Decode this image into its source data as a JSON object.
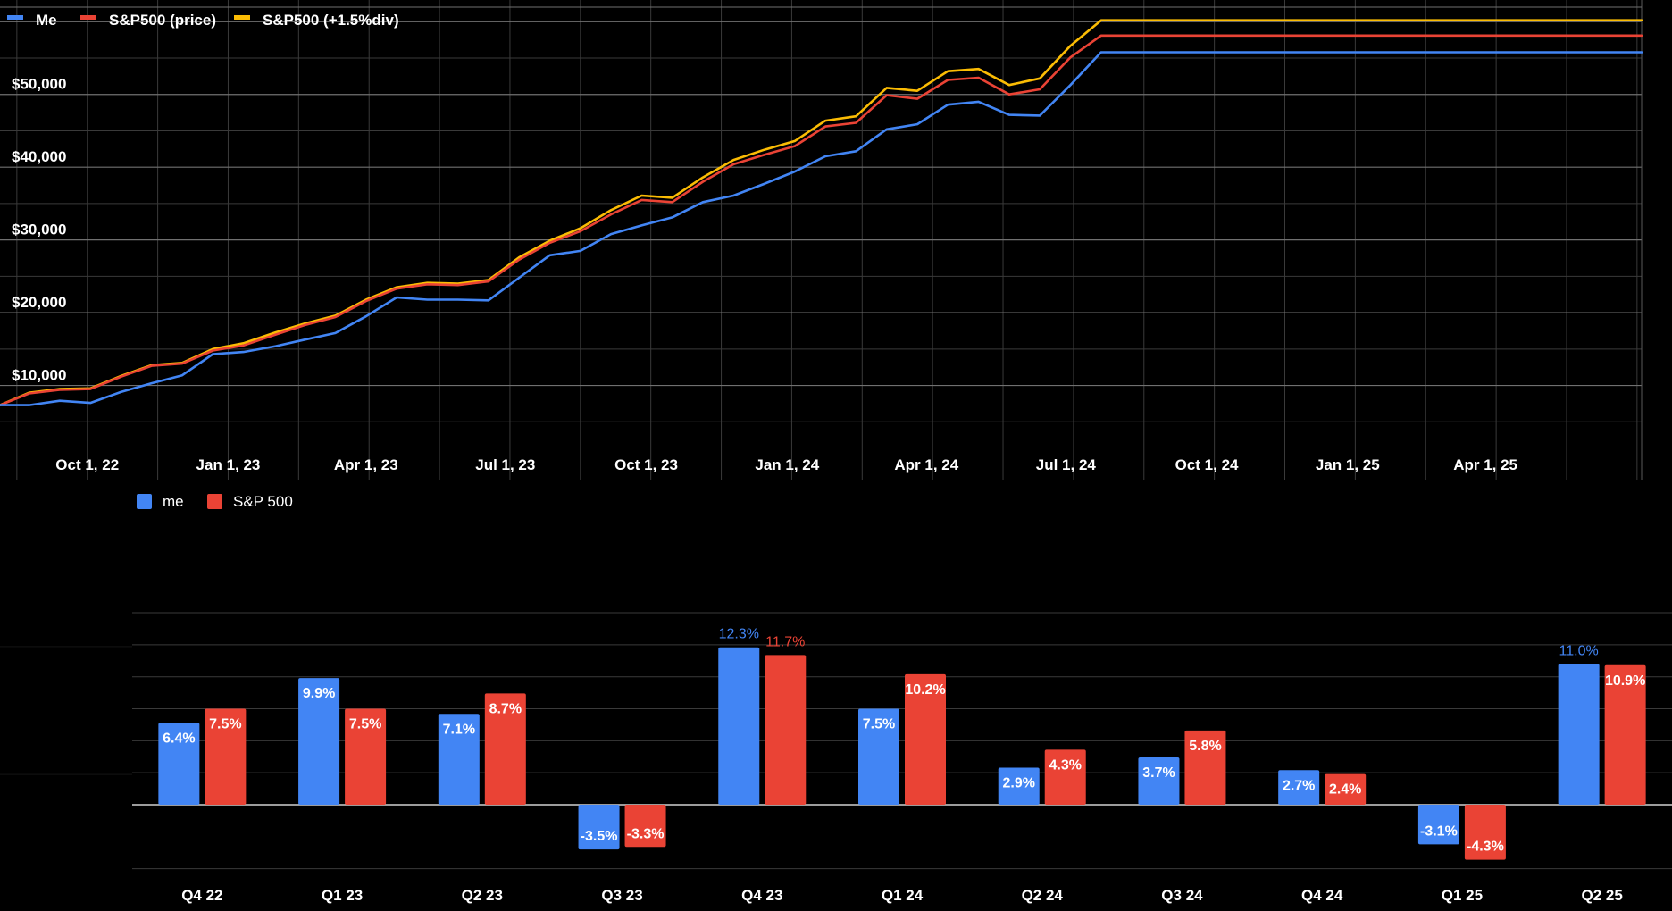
{
  "chart_data": [
    {
      "type": "line",
      "title": "",
      "xlabel": "",
      "ylabel": "",
      "legend_position": "top-left",
      "grid": true,
      "x_tick_labels": [
        "Oct 1, 22",
        "Jan 1, 23",
        "Apr 1, 23",
        "Jul 1, 23",
        "Oct 1, 23",
        "Jan 1, 24",
        "Apr 1, 24",
        "Jul 1, 24",
        "Oct 1, 24",
        "Jan 1, 25",
        "Apr 1, 25"
      ],
      "x_ticks": [
        "2022-10-01",
        "2023-01-01",
        "2023-04-01",
        "2023-07-01",
        "2023-10-01",
        "2024-01-01",
        "2024-04-01",
        "2024-07-01",
        "2024-10-01",
        "2025-01-01",
        "2025-04-01"
      ],
      "y_tick_labels": [
        "$10,000",
        "$20,000",
        "$30,000",
        "$40,000",
        "$50,000"
      ],
      "y_ticks": [
        10000,
        20000,
        30000,
        40000,
        50000
      ],
      "xlim": [
        "2022-08-05",
        "2025-07-12"
      ],
      "ylim": [
        4300,
        62000
      ],
      "x": [
        "2022-08-05",
        "2022-08-24",
        "2022-09-13",
        "2022-10-03",
        "2022-10-23",
        "2022-11-12",
        "2022-12-02",
        "2022-12-22",
        "2023-01-11",
        "2023-02-01",
        "2023-02-20",
        "2023-03-12",
        "2023-04-01",
        "2023-04-21",
        "2023-05-11",
        "2023-05-31",
        "2023-06-20",
        "2023-07-10",
        "2023-07-30",
        "2023-08-19",
        "2023-09-08",
        "2023-09-28",
        "2023-10-18",
        "2023-11-07",
        "2023-11-27",
        "2023-12-17",
        "2024-01-06",
        "2024-01-26",
        "2024-02-15",
        "2024-03-06",
        "2024-03-26",
        "2024-04-15",
        "2024-05-05",
        "2024-05-25",
        "2024-06-14",
        "2024-07-04",
        "2024-07-24",
        "2024-08-13",
        "2024-09-02",
        "2024-09-22",
        "2024-10-12",
        "2024-11-01",
        "2024-11-21",
        "2024-12-11",
        "2024-12-31",
        "2025-01-20",
        "2025-02-09",
        "2025-03-01",
        "2025-03-21",
        "2025-04-10",
        "2025-04-30",
        "2025-05-20",
        "2025-06-09",
        "2025-06-29",
        "2025-07-12"
      ],
      "series": [
        {
          "name": "Me",
          "color": "#4285f4",
          "values": [
            7300,
            7300,
            7900,
            7600,
            9100,
            10300,
            11400,
            14300,
            14600,
            15400,
            16300,
            17200,
            19500,
            22100,
            21800,
            21800,
            21700,
            24800,
            27900,
            28500,
            30800,
            32000,
            33100,
            35200,
            36100,
            37700,
            39400,
            41500,
            42200,
            45200,
            45900,
            48600,
            49000,
            47200,
            47100,
            51300,
            55800,
            55800,
            55800,
            55800,
            55800,
            55800,
            55800,
            55800,
            55800,
            55800,
            55800,
            55800,
            55800,
            55800,
            55800,
            55800,
            55800,
            55800,
            55800
          ]
        },
        {
          "name": "S&P500 (price)",
          "color": "#ea4335",
          "values": [
            7300,
            8900,
            9400,
            9500,
            11200,
            12700,
            13000,
            14800,
            15500,
            17000,
            18300,
            19400,
            21600,
            23300,
            23900,
            23800,
            24300,
            27300,
            29600,
            31200,
            33500,
            35500,
            35200,
            38000,
            40400,
            41700,
            42900,
            45600,
            46100,
            49900,
            49400,
            52000,
            52300,
            50000,
            50700,
            55100,
            58100,
            58100,
            58100,
            58100,
            58100,
            58100,
            58100,
            58100,
            58100,
            58100,
            58100,
            58100,
            58100,
            58100,
            58100,
            58100,
            58100,
            58100,
            58100
          ]
        },
        {
          "name": "S&P500 (+1.5%div)",
          "color": "#fbbc04",
          "values": [
            7300,
            9000,
            9500,
            9600,
            11300,
            12800,
            13100,
            15000,
            15800,
            17300,
            18500,
            19600,
            21800,
            23500,
            24100,
            24000,
            24500,
            27600,
            29900,
            31600,
            34100,
            36100,
            35800,
            38600,
            41000,
            42400,
            43600,
            46400,
            47000,
            50900,
            50500,
            53200,
            53500,
            51300,
            52200,
            56700,
            60200,
            60200,
            60200,
            60200,
            60200,
            60200,
            60200,
            60200,
            60200,
            60200,
            60200,
            60200,
            60200,
            60200,
            60200,
            60200,
            60200,
            60200,
            60200
          ]
        }
      ]
    },
    {
      "type": "bar",
      "title": "",
      "xlabel": "",
      "ylabel": "",
      "legend_position": "top-left",
      "grid": true,
      "categories": [
        "Q4 22",
        "Q1 23",
        "Q2 23",
        "Q3 23",
        "Q4 23",
        "Q1 24",
        "Q2 24",
        "Q3 24",
        "Q4 24",
        "Q1 25",
        "Q2 25"
      ],
      "ylim": [
        -5,
        14
      ],
      "series": [
        {
          "name": "me",
          "color": "#4285f4",
          "values": [
            6.4,
            9.9,
            7.1,
            -3.5,
            12.3,
            7.5,
            2.9,
            3.7,
            2.7,
            -3.1,
            11.0
          ],
          "labels": [
            "6.4%",
            "9.9%",
            "7.1%",
            "-3.5%",
            "12.3%",
            "7.5%",
            "2.9%",
            "3.7%",
            "2.7%",
            "-3.1%",
            "11.0%"
          ]
        },
        {
          "name": "S&P 500",
          "color": "#ea4335",
          "values": [
            7.5,
            7.5,
            8.7,
            -3.3,
            11.7,
            10.2,
            4.3,
            5.8,
            2.4,
            -4.3,
            10.9
          ],
          "labels": [
            "7.5%",
            "7.5%",
            "8.7%",
            "-3.3%",
            "11.7%",
            "10.2%",
            "4.3%",
            "5.8%",
            "2.4%",
            "-4.3%",
            "10.9%"
          ]
        }
      ]
    }
  ]
}
